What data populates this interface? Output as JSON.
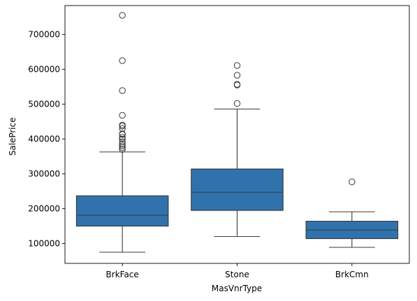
{
  "chart_data": {
    "type": "box",
    "title": "",
    "xlabel": "MasVnrType",
    "ylabel": "SalePrice",
    "categories": [
      "BrkFace",
      "Stone",
      "BrkCmn"
    ],
    "ylim": [
      43000,
      783000
    ],
    "yticks": [
      100000,
      200000,
      300000,
      400000,
      500000,
      600000,
      700000
    ],
    "ytick_labels": [
      "100000",
      "200000",
      "300000",
      "400000",
      "500000",
      "600000",
      "700000"
    ],
    "grid": false,
    "box_color": "#2f72ac",
    "line_color": "#3a3a3a",
    "boxes": [
      {
        "category": "BrkFace",
        "whisker_low": 75000,
        "q1": 150000,
        "median": 181000,
        "q3": 237000,
        "whisker_high": 363000,
        "outliers": [
          370000,
          375000,
          380000,
          385000,
          392000,
          400000,
          405000,
          413000,
          415000,
          430000,
          437000,
          440000,
          468000,
          539000,
          625000,
          755000
        ]
      },
      {
        "category": "Stone",
        "whisker_low": 120000,
        "q1": 195000,
        "median": 247000,
        "q3": 314000,
        "whisker_high": 486000,
        "outliers": [
          502000,
          555000,
          557000,
          583000,
          611000
        ]
      },
      {
        "category": "BrkCmn",
        "whisker_low": 89000,
        "q1": 114000,
        "median": 139000,
        "q3": 164000,
        "whisker_high": 191000,
        "outliers": [
          277000
        ]
      }
    ]
  }
}
